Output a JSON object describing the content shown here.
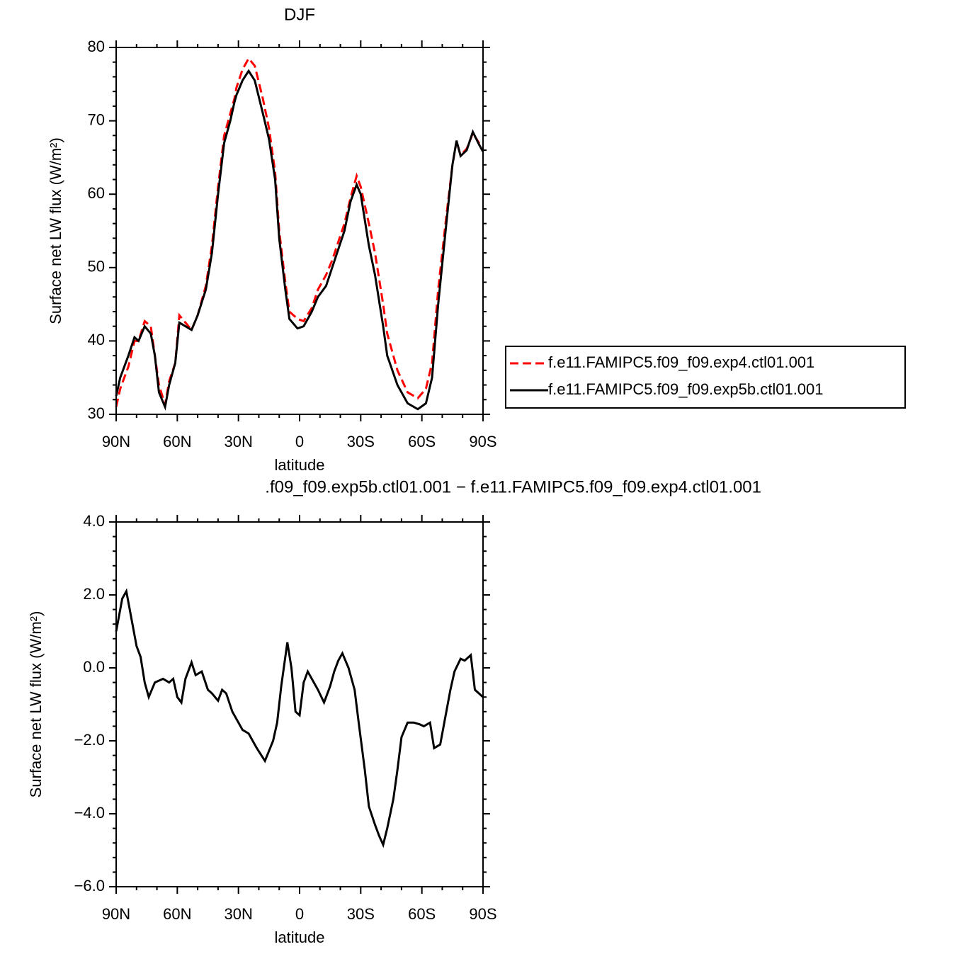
{
  "chart_data": [
    {
      "type": "line",
      "title": "DJF",
      "xlabel": "latitude",
      "ylabel": "Surface net LW flux (W/m²)",
      "x": [
        90,
        88,
        84,
        81,
        79,
        76,
        73,
        71,
        69,
        66,
        64,
        61,
        59,
        56,
        53,
        50,
        46,
        43,
        40,
        37,
        34,
        32,
        31,
        28,
        25,
        22,
        18,
        15,
        12,
        10,
        7,
        5,
        1,
        -2,
        -6,
        -9,
        -13,
        -16,
        -22,
        -25,
        -28,
        -30,
        -34,
        -37,
        -41,
        -43,
        -48,
        -53,
        -58,
        -62,
        -65,
        -68,
        -72,
        -75,
        -77,
        -79,
        -82,
        -85,
        -88,
        -90
      ],
      "series": [
        {
          "name": "f.e11.FAMIPC5.f09_f09.exp4.ctl01.001",
          "color": "#ff0000",
          "line_style": "dashed",
          "values": [
            31,
            33.5,
            36.5,
            40,
            40,
            42.7,
            42,
            38,
            34,
            31.3,
            34.5,
            37,
            43.5,
            42.5,
            41.5,
            43.5,
            47.5,
            53,
            61,
            68,
            71,
            73,
            74.5,
            77,
            78.5,
            77.5,
            73,
            69,
            63,
            55,
            48,
            44,
            43,
            42.7,
            44.5,
            47,
            49,
            51,
            56,
            59.5,
            62.5,
            61,
            56,
            52,
            45,
            41,
            36,
            33,
            32.2,
            33.5,
            37,
            47,
            57,
            64,
            67.2,
            65.3,
            66.2,
            68.3,
            67,
            66.5
          ]
        },
        {
          "name": "f.e11.FAMIPC5.f09_f09.exp5b.ctl01.001",
          "color": "#000000",
          "line_style": "solid",
          "values": [
            32.5,
            35,
            38,
            40.5,
            40,
            42,
            41,
            38,
            33,
            31,
            34,
            37,
            42.5,
            42,
            41.5,
            43.5,
            47,
            52,
            60,
            67,
            70,
            72.5,
            73.5,
            75.5,
            76.8,
            75.5,
            71,
            67.5,
            62,
            54,
            47,
            43,
            41.7,
            42,
            44,
            46,
            47.5,
            50,
            55,
            59,
            61.3,
            60,
            53,
            49,
            42,
            38,
            34,
            31.5,
            30.7,
            31.5,
            35,
            45,
            56,
            64,
            67.3,
            65.2,
            66,
            68.5,
            66.8,
            65.8
          ]
        }
      ],
      "xlim": [
        90,
        -90
      ],
      "xticks": [
        {
          "value": 90,
          "label": "90N"
        },
        {
          "value": 60,
          "label": "60N"
        },
        {
          "value": 30,
          "label": "30N"
        },
        0,
        {
          "value": -30,
          "label": "30S"
        },
        {
          "value": -60,
          "label": "60S"
        },
        {
          "value": -90,
          "label": "90S"
        }
      ],
      "ylim": [
        30,
        80
      ],
      "yticks": [
        30,
        40,
        50,
        60,
        70,
        80
      ],
      "legend": "right"
    },
    {
      "type": "line",
      "title": ".f09_f09.exp5b.ctl01.001 − f.e11.FAMIPC5.f09_f09.exp4.ctl01.001",
      "xlabel": "latitude",
      "ylabel": "Surface net LW flux (W/m²)",
      "x": [
        90,
        87,
        85,
        82,
        80,
        78,
        76,
        74,
        71,
        67,
        64,
        62,
        60,
        58,
        56,
        53,
        51,
        48,
        45,
        43,
        40,
        38,
        36,
        33,
        30,
        28,
        25,
        21,
        17,
        13,
        11,
        9,
        6,
        4,
        2,
        0,
        -2,
        -4,
        -7,
        -9,
        -12,
        -15,
        -17,
        -19,
        -21,
        -24,
        -27,
        -29,
        -32,
        -34,
        -37,
        -39,
        -41,
        -43,
        -46,
        -48,
        -50,
        -53,
        -56,
        -59,
        -61,
        -64,
        -66,
        -69,
        -72,
        -74,
        -76,
        -79,
        -81,
        -84,
        -86,
        -90
      ],
      "series": [
        {
          "color": "#000000",
          "values": [
            1.0,
            1.9,
            2.1,
            1.2,
            0.6,
            0.3,
            -0.4,
            -0.8,
            -0.4,
            -0.3,
            -0.4,
            -0.3,
            -0.8,
            -0.95,
            -0.3,
            0.15,
            -0.2,
            -0.1,
            -0.6,
            -0.7,
            -0.9,
            -0.6,
            -0.7,
            -1.2,
            -1.5,
            -1.7,
            -1.8,
            -2.2,
            -2.55,
            -2.0,
            -1.5,
            -0.5,
            0.7,
            0.0,
            -1.2,
            -1.3,
            -0.4,
            -0.1,
            -0.4,
            -0.6,
            -0.95,
            -0.5,
            -0.1,
            0.2,
            0.4,
            0.0,
            -0.6,
            -1.5,
            -2.8,
            -3.8,
            -4.3,
            -4.6,
            -4.85,
            -4.4,
            -3.6,
            -2.8,
            -1.9,
            -1.5,
            -1.5,
            -1.55,
            -1.6,
            -1.5,
            -2.2,
            -2.1,
            -1.2,
            -0.6,
            -0.1,
            0.25,
            0.2,
            0.35,
            -0.6,
            -0.8
          ]
        }
      ],
      "xlim": [
        90,
        -90
      ],
      "xticks": [
        {
          "value": 90,
          "label": "90N"
        },
        {
          "value": 60,
          "label": "60N"
        },
        {
          "value": 30,
          "label": "30N"
        },
        0,
        {
          "value": -30,
          "label": "30S"
        },
        {
          "value": -60,
          "label": "60S"
        },
        {
          "value": -90,
          "label": "90S"
        }
      ],
      "ylim": [
        -6,
        4
      ],
      "yticks": [
        {
          "value": -6,
          "label": "−6.0"
        },
        {
          "value": -4,
          "label": "−4.0"
        },
        {
          "value": -2,
          "label": "−2.0"
        },
        {
          "value": 0,
          "label": "0.0"
        },
        {
          "value": 2,
          "label": "2.0"
        },
        {
          "value": 4,
          "label": "4.0"
        }
      ]
    }
  ]
}
